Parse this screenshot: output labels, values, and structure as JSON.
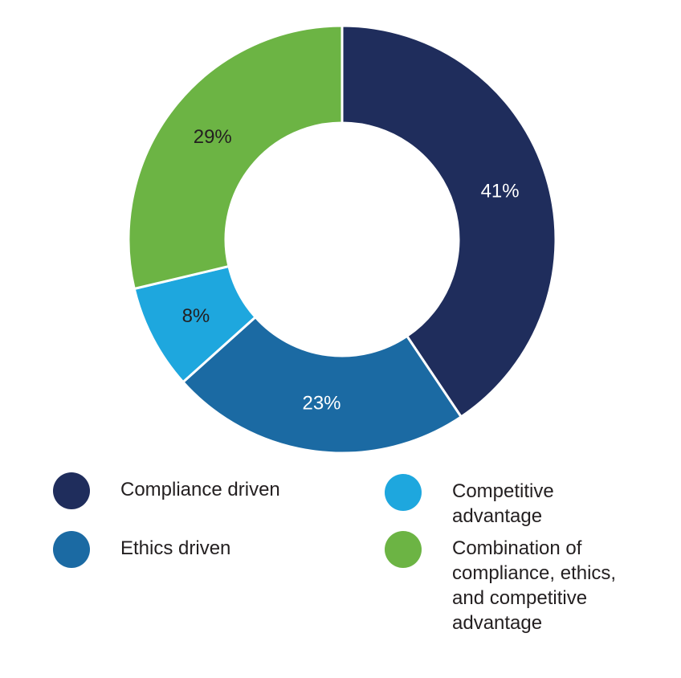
{
  "chart_data": {
    "type": "pie",
    "donut": true,
    "categories": [
      "Compliance driven",
      "Ethics driven",
      "Competitive advantage",
      "Combination of compliance, ethics, and competitive advantage"
    ],
    "values": [
      41,
      23,
      8,
      29
    ],
    "value_labels": [
      "41%",
      "23%",
      "8%",
      "29%"
    ],
    "colors": [
      "#1f2d5c",
      "#1b6aa3",
      "#1ea7de",
      "#6cb444"
    ],
    "label_colors": [
      "#ffffff",
      "#ffffff",
      "#231f20",
      "#231f20"
    ],
    "legend_placement": "bottom",
    "title": "",
    "xlabel": "",
    "ylabel": ""
  },
  "legend": [
    {
      "label": "Compliance driven",
      "color": "#1f2d5c"
    },
    {
      "label": "Competitive advantage",
      "color": "#1ea7de"
    },
    {
      "label": "Ethics driven",
      "color": "#1b6aa3"
    },
    {
      "label": "Combination of compliance, ethics, and competitive advantage",
      "color": "#6cb444"
    }
  ]
}
